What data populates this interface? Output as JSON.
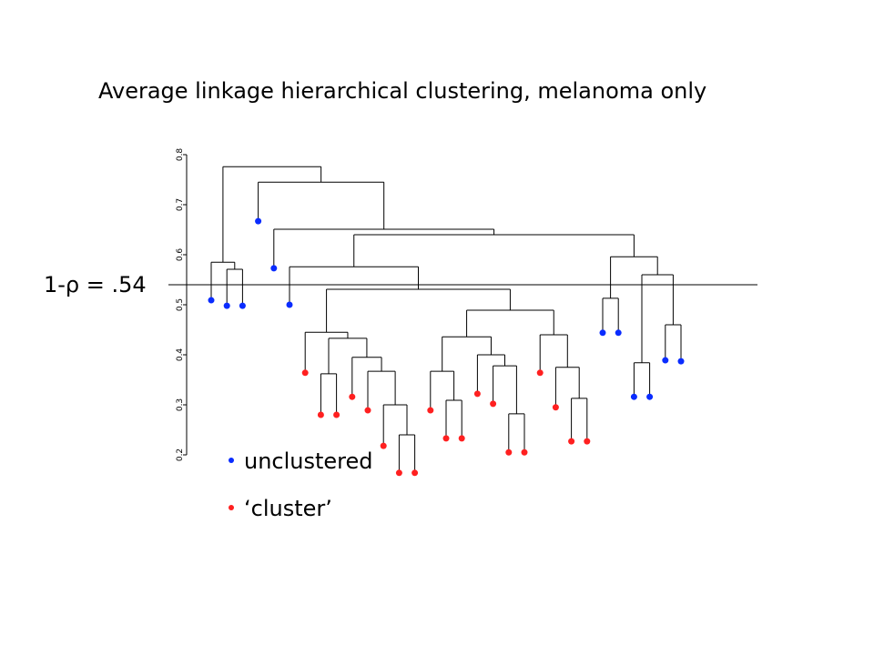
{
  "chart_data": {
    "type": "dendrogram",
    "title": "Average linkage hierarchical clustering, melanoma only",
    "ylim": [
      0.2,
      0.8
    ],
    "yticks": [
      {
        "value": 0.2,
        "label": "0.2"
      },
      {
        "value": 0.3,
        "label": "0.3"
      },
      {
        "value": 0.4,
        "label": "0.4"
      },
      {
        "value": 0.5,
        "label": "0.5"
      },
      {
        "value": 0.6,
        "label": "0.6"
      },
      {
        "value": 0.7,
        "label": "0.7"
      },
      {
        "value": 0.8,
        "label": "0.8"
      }
    ],
    "cut": {
      "value": 0.54,
      "label": "1-ρ = .54"
    },
    "series": [
      {
        "name": "unclustered",
        "color": "#0a2cff"
      },
      {
        "name": "‘cluster’",
        "color": "#ff2020"
      }
    ],
    "leaves": [
      {
        "height": 0.509,
        "series": 0
      },
      {
        "height": 0.498,
        "series": 0
      },
      {
        "height": 0.498,
        "series": 0
      },
      {
        "height": 0.667,
        "series": 0
      },
      {
        "height": 0.573,
        "series": 0
      },
      {
        "height": 0.5,
        "series": 0
      },
      {
        "height": 0.364,
        "series": 1
      },
      {
        "height": 0.28,
        "series": 1
      },
      {
        "height": 0.28,
        "series": 1
      },
      {
        "height": 0.316,
        "series": 1
      },
      {
        "height": 0.289,
        "series": 1
      },
      {
        "height": 0.218,
        "series": 1
      },
      {
        "height": 0.164,
        "series": 1
      },
      {
        "height": 0.164,
        "series": 1
      },
      {
        "height": 0.289,
        "series": 1
      },
      {
        "height": 0.233,
        "series": 1
      },
      {
        "height": 0.233,
        "series": 1
      },
      {
        "height": 0.322,
        "series": 1
      },
      {
        "height": 0.302,
        "series": 1
      },
      {
        "height": 0.205,
        "series": 1
      },
      {
        "height": 0.205,
        "series": 1
      },
      {
        "height": 0.364,
        "series": 1
      },
      {
        "height": 0.295,
        "series": 1
      },
      {
        "height": 0.227,
        "series": 1
      },
      {
        "height": 0.227,
        "series": 1
      },
      {
        "height": 0.444,
        "series": 0
      },
      {
        "height": 0.444,
        "series": 0
      },
      {
        "height": 0.316,
        "series": 0
      },
      {
        "height": 0.316,
        "series": 0
      },
      {
        "height": 0.389,
        "series": 0
      },
      {
        "height": 0.387,
        "series": 0
      }
    ],
    "merge": [
      [
        -2,
        -3
      ],
      [
        -1,
        1
      ],
      [
        -8,
        -9
      ],
      [
        -13,
        -14
      ],
      [
        -12,
        4
      ],
      [
        -11,
        5
      ],
      [
        -10,
        6
      ],
      [
        3,
        7
      ],
      [
        -7,
        8
      ],
      [
        -16,
        -17
      ],
      [
        -15,
        10
      ],
      [
        -20,
        -21
      ],
      [
        -19,
        12
      ],
      [
        -18,
        13
      ],
      [
        11,
        14
      ],
      [
        -24,
        -25
      ],
      [
        -23,
        16
      ],
      [
        -22,
        17
      ],
      [
        15,
        18
      ],
      [
        9,
        19
      ],
      [
        -6,
        20
      ],
      [
        -26,
        -27
      ],
      [
        -28,
        -29
      ],
      [
        -30,
        -31
      ],
      [
        23,
        24
      ],
      [
        22,
        25
      ],
      [
        21,
        26
      ],
      [
        -5,
        27
      ],
      [
        -4,
        28
      ],
      [
        2,
        29
      ]
    ],
    "heights": [
      0.571,
      0.585,
      0.362,
      0.24,
      0.3,
      0.367,
      0.395,
      0.433,
      0.445,
      0.309,
      0.367,
      0.282,
      0.378,
      0.4,
      0.436,
      0.313,
      0.375,
      0.44,
      0.489,
      0.531,
      0.576,
      0.513,
      0.384,
      0.46,
      0.56,
      0.596,
      0.64,
      0.651,
      0.745,
      0.776
    ]
  }
}
